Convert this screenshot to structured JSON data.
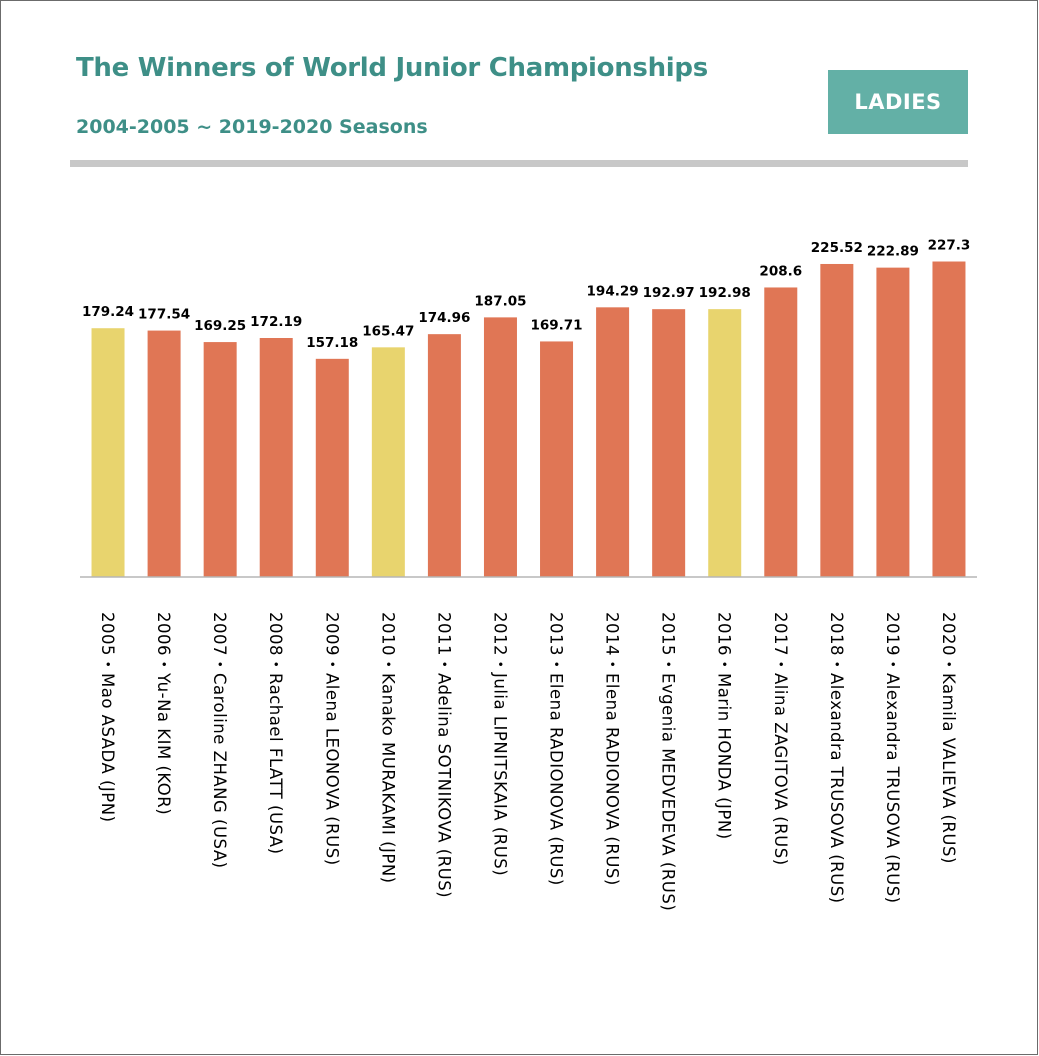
{
  "header": {
    "title": "The Winners of World Junior Championships",
    "subtitle": "2004-2005 ~ 2019-2020 Seasons",
    "badge": "LADIES"
  },
  "colors": {
    "accent": "#3e8f87",
    "badge": "#63b0a6",
    "bar_default": "#e07655",
    "bar_highlight": "#e8d46e",
    "divider": "#c8c8c8"
  },
  "chart_data": {
    "type": "bar",
    "categories": [
      "2005・Mao ASADA  (JPN)",
      "2006・Yu-Na KIM  (KOR)",
      "2007・Caroline ZHANG  (USA)",
      "2008・Rachael FLATT (USA)",
      "2009・Alena LEONOVA (RUS)",
      "2010・Kanako MURAKAMI (JPN)",
      "2011・Adelina SOTNIKOVA (RUS)",
      "2012・Julia LIPNITSKAIA (RUS)",
      "2013・Elena RADIONOVA (RUS)",
      "2014・Elena RADIONOVA (RUS)",
      "2015・Evgenia MEDVEDEVA (RUS)",
      "2016・Marin HONDA (JPN)",
      "2017・Alina ZAGITOVA (RUS)",
      "2018・Alexandra TRUSOVA (RUS)",
      "2019・Alexandra TRUSOVA (RUS)",
      "2020・Kamila VALIEVA (RUS)"
    ],
    "values": [
      179.24,
      177.54,
      169.25,
      172.19,
      157.18,
      165.47,
      174.96,
      187.05,
      169.71,
      194.29,
      192.97,
      192.98,
      208.6,
      225.52,
      222.89,
      227.3
    ],
    "value_labels": [
      "179.24",
      "177.54",
      "169.25",
      "172.19",
      "157.18",
      "165.47",
      "174.96",
      "187.05",
      "169.71",
      "194.29",
      "192.97",
      "192.98",
      "208.6",
      "225.52",
      "222.89",
      "227.3"
    ],
    "highlight_categories": [
      "2005・Mao ASADA  (JPN)",
      "2010・Kanako MURAKAMI (JPN)",
      "2016・Marin HONDA (JPN)"
    ],
    "ylim": [
      0,
      250
    ],
    "grid": false,
    "legend": "none",
    "title": "The Winners of World Junior Championships",
    "xlabel": "",
    "ylabel": ""
  }
}
